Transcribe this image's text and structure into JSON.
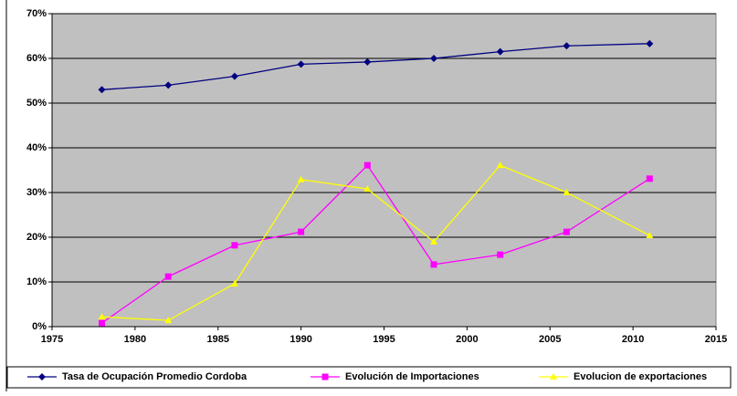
{
  "chart_data": {
    "type": "line",
    "x": [
      1978,
      1982,
      1986,
      1990,
      1994,
      1998,
      2002,
      2006,
      2011
    ],
    "series": [
      {
        "name": "Tasa de Ocupación Promedio Cordoba",
        "color": "#000080",
        "marker": "diamond",
        "values": [
          53.0,
          54.0,
          56.0,
          58.7,
          59.2,
          60.0,
          61.5,
          62.8,
          63.3
        ]
      },
      {
        "name": "Evolución de Importaciones",
        "color": "#ff00ff",
        "marker": "square",
        "values": [
          0.8,
          11.2,
          18.2,
          21.2,
          36.1,
          13.9,
          16.1,
          21.2,
          33.1
        ]
      },
      {
        "name": "Evolucion de exportaciones",
        "color": "#ffff00",
        "marker": "triangle",
        "values": [
          2.2,
          1.4,
          9.6,
          32.9,
          30.8,
          19.0,
          36.1,
          30.0,
          20.4
        ]
      }
    ],
    "xlim": [
      1975,
      2015
    ],
    "xticks": [
      1975,
      1980,
      1985,
      1990,
      1995,
      2000,
      2005,
      2010,
      2015
    ],
    "ylim": [
      0,
      70
    ],
    "yticks": [
      {
        "value": 0,
        "label": "0%"
      },
      {
        "value": 10,
        "label": "10%"
      },
      {
        "value": 20,
        "label": "20%"
      },
      {
        "value": 30,
        "label": "30%"
      },
      {
        "value": 40,
        "label": "40%"
      },
      {
        "value": 50,
        "label": "50%"
      },
      {
        "value": 60,
        "label": "60%"
      },
      {
        "value": 70,
        "label": "70%"
      }
    ],
    "grid": true,
    "legend": "bottom"
  }
}
